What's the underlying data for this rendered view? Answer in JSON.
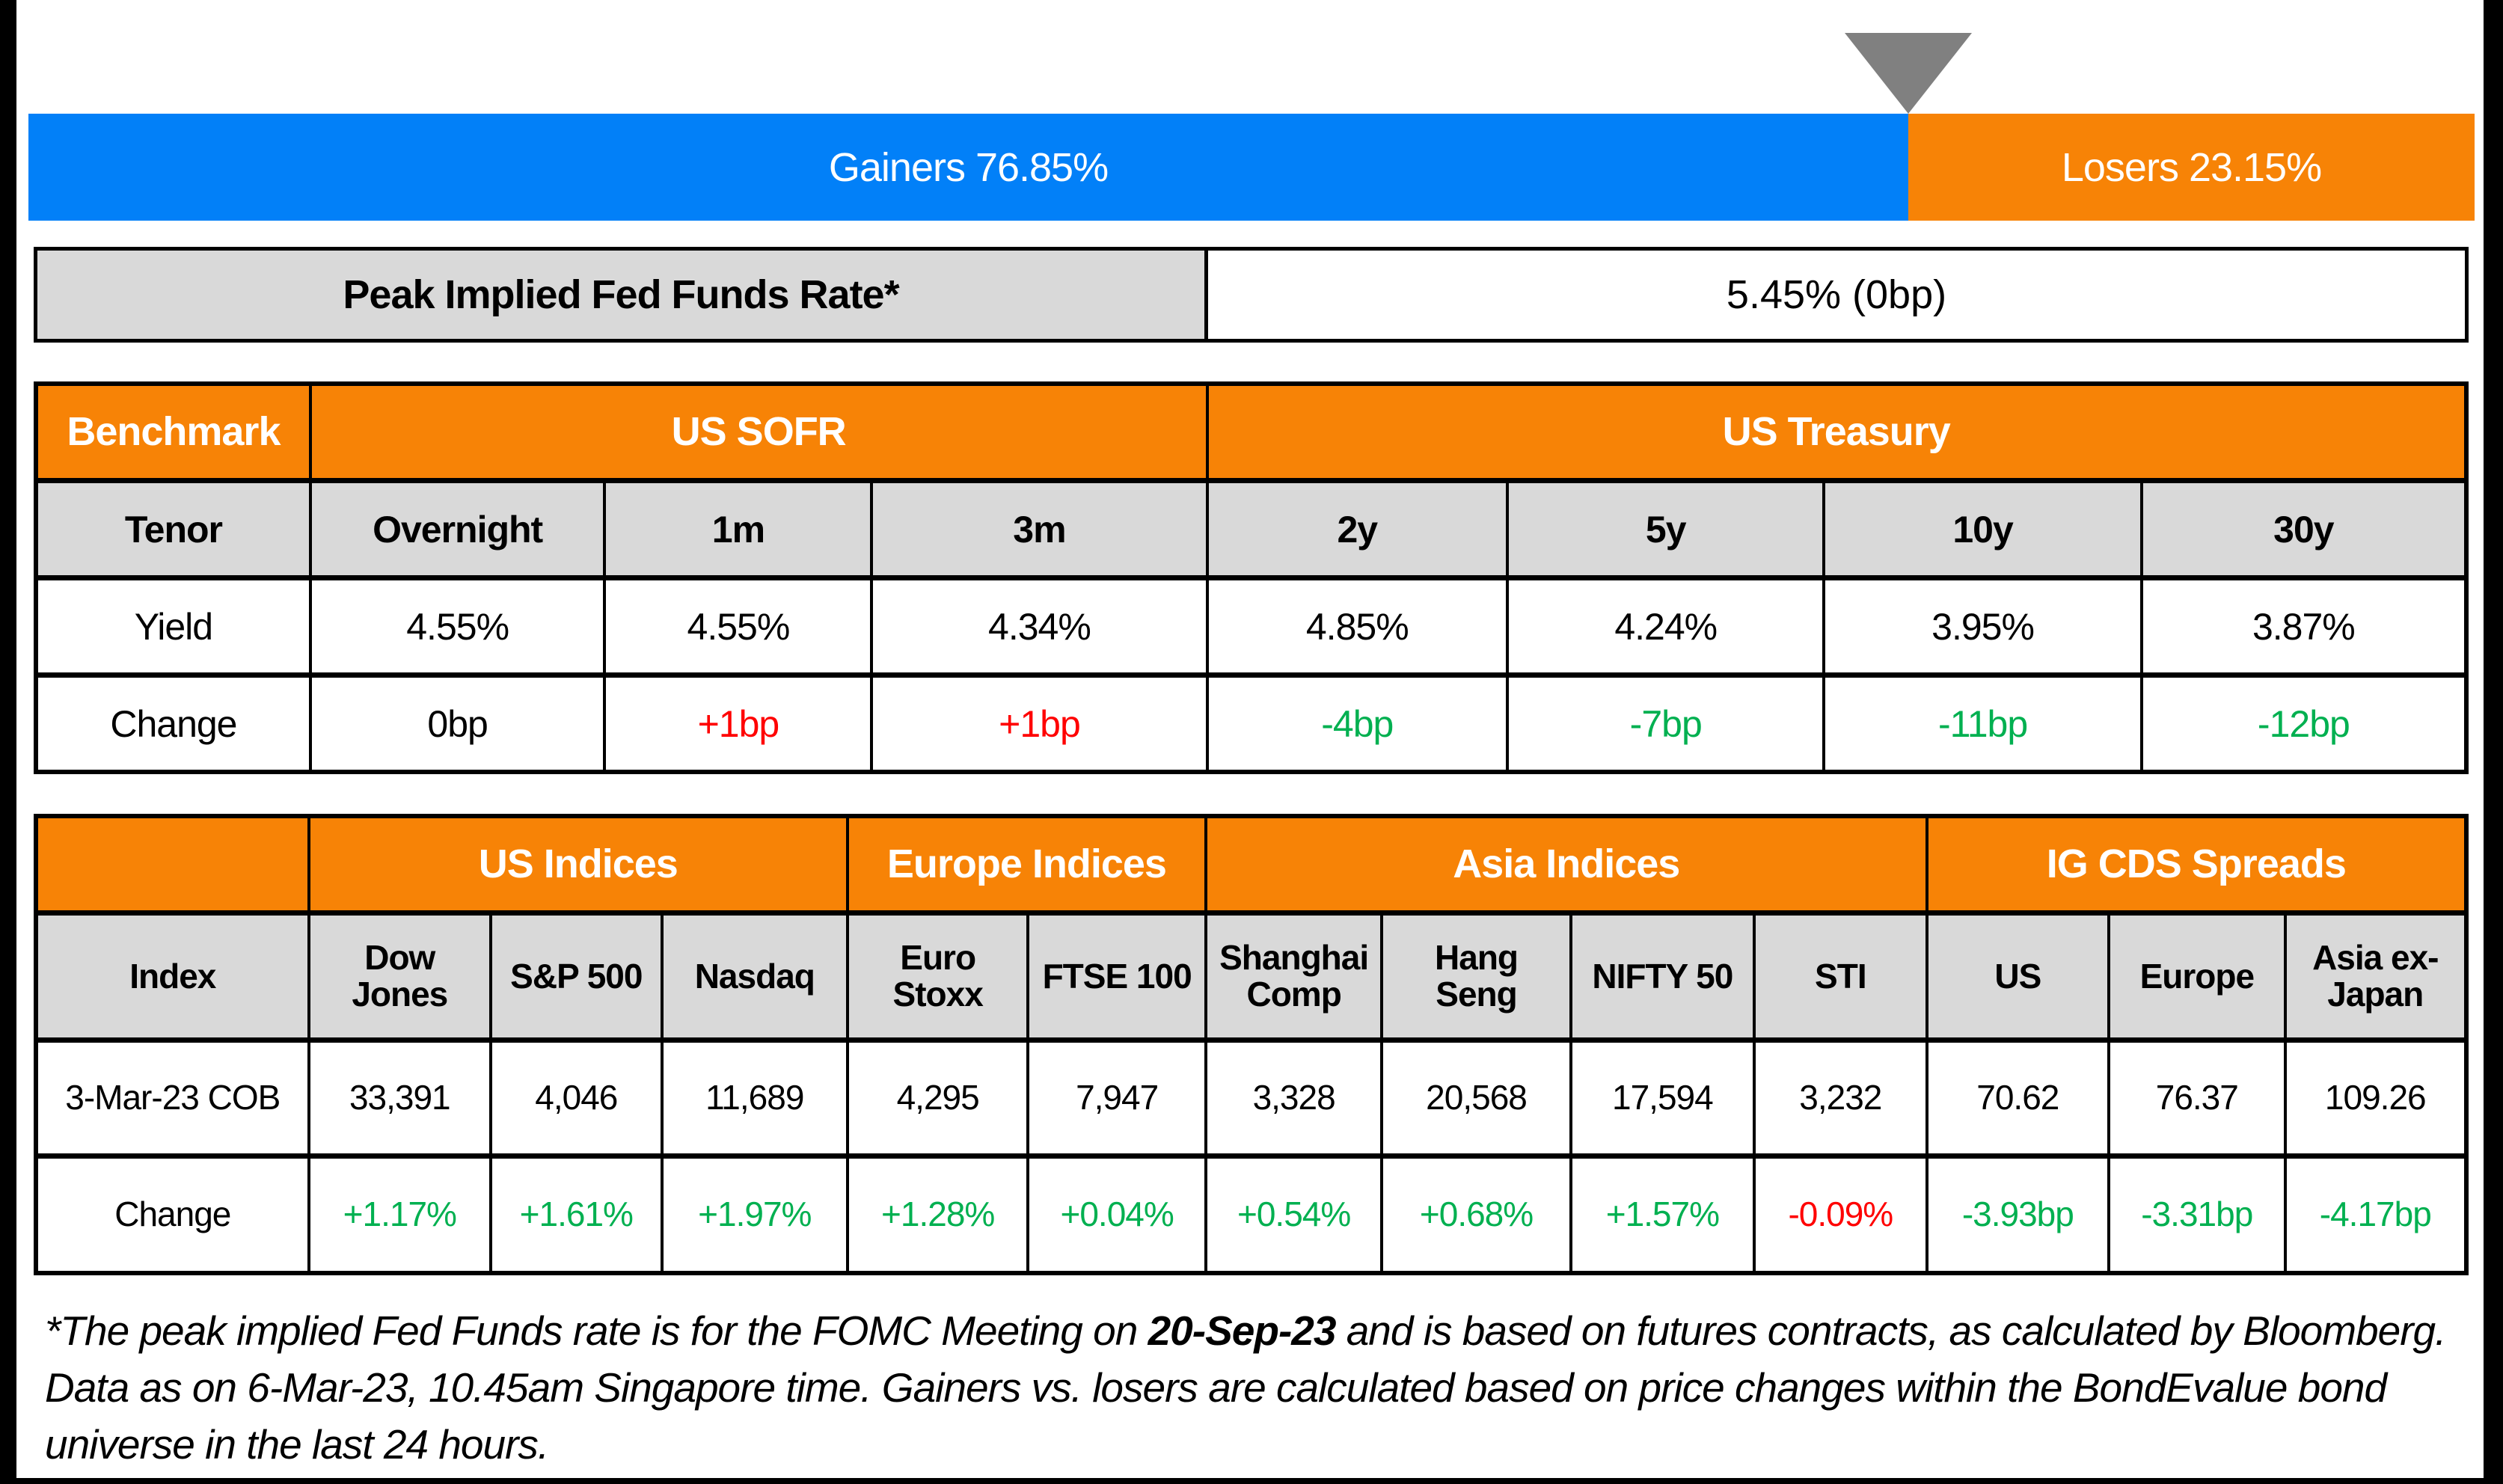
{
  "colors": {
    "blue": "#0280f8",
    "orange": "#f78306",
    "gray_cell": "#d9d9d9",
    "triangle_gray": "#808080",
    "green": "#00b050",
    "red": "#ff0000",
    "black": "#000000"
  },
  "gainers_losers_bar": {
    "gainers_label": "Gainers 76.85%",
    "losers_label": "Losers 23.15%",
    "gainers_pct": 76.85,
    "losers_pct": 23.15
  },
  "peak_rate": {
    "label": "Peak Implied Fed Funds Rate*",
    "value": "5.45% (0bp)"
  },
  "benchmark_table": {
    "corner_header": "Benchmark",
    "group_us_sofr": "US SOFR",
    "group_us_treasury": "US Treasury",
    "tenor_row": {
      "label": "Tenor",
      "cells": [
        "Overnight",
        "1m",
        "3m",
        "2y",
        "5y",
        "10y",
        "30y"
      ]
    },
    "yield_row": {
      "label": "Yield",
      "cells": [
        "4.55%",
        "4.55%",
        "4.34%",
        "4.85%",
        "4.24%",
        "3.95%",
        "3.87%"
      ]
    },
    "change_row": {
      "label": "Change",
      "cells": [
        "0bp",
        "+1bp",
        "+1bp",
        "-4bp",
        "-7bp",
        "-11bp",
        "-12bp"
      ],
      "cell_colors": [
        "black",
        "red",
        "red",
        "green",
        "green",
        "green",
        "green"
      ]
    }
  },
  "indices_table": {
    "group_headers": [
      "US Indices",
      "Europe Indices",
      "Asia Indices",
      "IG CDS Spreads"
    ],
    "columns": [
      "Index",
      "Dow Jones",
      "S&P 500",
      "Nasdaq",
      "Euro Stoxx",
      "FTSE 100",
      "Shanghai Comp",
      "Hang Seng",
      "NIFTY 50",
      "STI",
      "US",
      "Europe",
      "Asia ex-Japan"
    ],
    "cob_row": {
      "label": "3-Mar-23 COB",
      "cells": [
        "33,391",
        "4,046",
        "11,689",
        "4,295",
        "7,947",
        "3,328",
        "20,568",
        "17,594",
        "3,232",
        "70.62",
        "76.37",
        "109.26"
      ]
    },
    "change_row": {
      "label": "Change",
      "cells": [
        "+1.17%",
        "+1.61%",
        "+1.97%",
        "+1.28%",
        "+0.04%",
        "+0.54%",
        "+0.68%",
        "+1.57%",
        "-0.09%",
        "-3.93bp",
        "-3.31bp",
        "-4.17bp"
      ],
      "cell_colors": [
        "green",
        "green",
        "green",
        "green",
        "green",
        "green",
        "green",
        "green",
        "red",
        "green",
        "green",
        "green"
      ]
    }
  },
  "footnote": {
    "part1": "*The peak implied Fed Funds rate is for the FOMC Meeting on ",
    "bold": "20-Sep-23",
    "part2": " and is based on futures contracts, as calculated by Bloomberg. Data as on 6-Mar-23, 10.45am Singapore time. Gainers vs. losers are calculated based on price changes within the BondEvalue bond universe in the last 24 hours."
  },
  "chart_data": [
    {
      "type": "bar",
      "title": "Gainers vs Losers (stacked percentage bar)",
      "categories": [
        "Gainers",
        "Losers"
      ],
      "values": [
        76.85,
        23.15
      ],
      "unit": "%",
      "colors": [
        "#0280f8",
        "#f78306"
      ],
      "annotations": [
        "gray marker triangle at boundary between gainers and losers"
      ]
    },
    {
      "type": "table",
      "title": "Peak Implied Fed Funds Rate*",
      "rows": [
        [
          "Peak Implied Fed Funds Rate*",
          "5.45% (0bp)"
        ]
      ]
    },
    {
      "type": "table",
      "title": "Benchmark — US SOFR / US Treasury",
      "columns": [
        "Tenor",
        "Overnight",
        "1m",
        "3m",
        "2y",
        "5y",
        "10y",
        "30y"
      ],
      "rows": [
        [
          "Yield",
          "4.55%",
          "4.55%",
          "4.34%",
          "4.85%",
          "4.24%",
          "3.95%",
          "3.87%"
        ],
        [
          "Change",
          "0bp",
          "+1bp",
          "+1bp",
          "-4bp",
          "-7bp",
          "-11bp",
          "-12bp"
        ]
      ]
    },
    {
      "type": "table",
      "title": "US / Europe / Asia Indices and IG CDS Spreads",
      "columns": [
        "Index",
        "Dow Jones",
        "S&P 500",
        "Nasdaq",
        "Euro Stoxx",
        "FTSE 100",
        "Shanghai Comp",
        "Hang Seng",
        "NIFTY 50",
        "STI",
        "US",
        "Europe",
        "Asia ex-Japan"
      ],
      "rows": [
        [
          "3-Mar-23 COB",
          "33,391",
          "4,046",
          "11,689",
          "4,295",
          "7,947",
          "3,328",
          "20,568",
          "17,594",
          "3,232",
          "70.62",
          "76.37",
          "109.26"
        ],
        [
          "Change",
          "+1.17%",
          "+1.61%",
          "+1.97%",
          "+1.28%",
          "+0.04%",
          "+0.54%",
          "+0.68%",
          "+1.57%",
          "-0.09%",
          "-3.93bp",
          "-3.31bp",
          "-4.17bp"
        ]
      ]
    }
  ]
}
